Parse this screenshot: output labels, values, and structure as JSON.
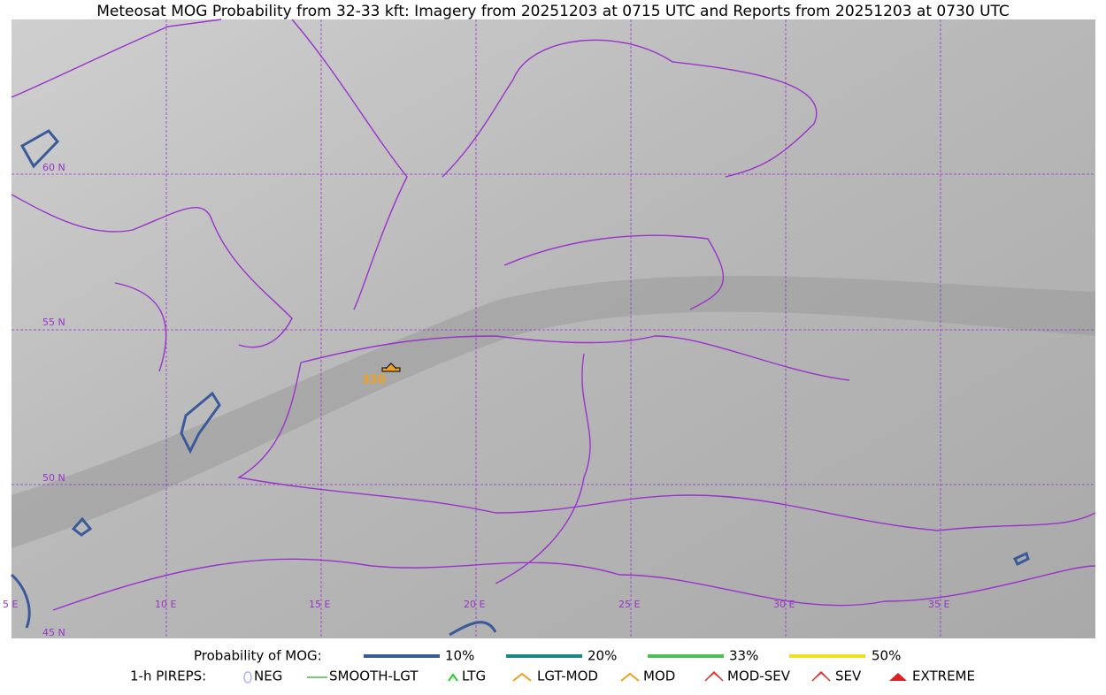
{
  "title": "Meteosat MOG Probability from 32-33 kft: Imagery from 20251203 at 0715 UTC and Reports from 20251203 at 0730 UTC",
  "grid_labels": {
    "lat": [
      "60 N",
      "55 N",
      "50 N",
      "45 N"
    ],
    "lon": [
      "5 E",
      "10 E",
      "15 E",
      "20 E",
      "25 E",
      "30 E",
      "35 E"
    ]
  },
  "reports": [
    {
      "label": "330"
    }
  ],
  "legend": {
    "title": "Probability of MOG:",
    "items": [
      "10%",
      "20%",
      "33%",
      "50%"
    ]
  },
  "pireps": {
    "title": "1-h PIREPS:",
    "items": [
      "NEG",
      "SMOOTH-LGT",
      "LTG",
      "LGT-MOD",
      "MOD",
      "MOD-SEV",
      "SEV",
      "EXTREME"
    ]
  }
}
